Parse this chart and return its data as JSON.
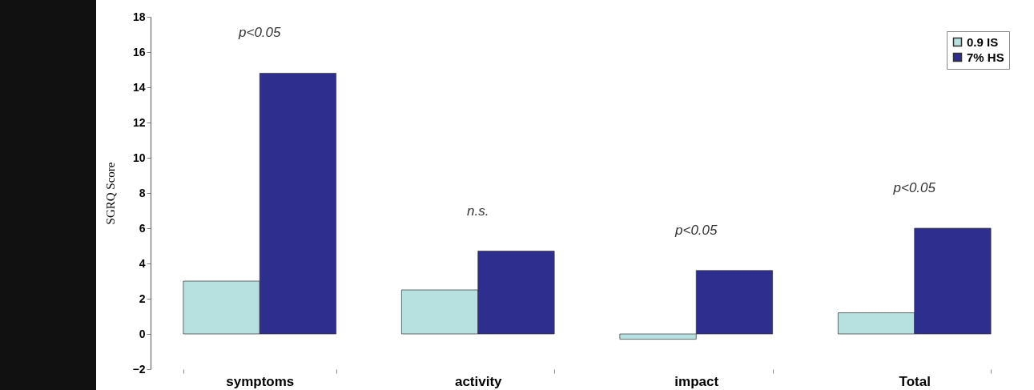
{
  "chart_data": {
    "type": "bar",
    "ylabel": "SGRQ Score",
    "categories": [
      "symptoms",
      "activity",
      "impact",
      "Total"
    ],
    "series": [
      {
        "name": "0.9 IS",
        "color": "#b7e0e0",
        "values": [
          3.0,
          2.5,
          -0.3,
          1.2
        ]
      },
      {
        "name": "7% HS",
        "color": "#2e2e8f",
        "values": [
          14.8,
          4.7,
          3.6,
          6.0
        ]
      }
    ],
    "ylim": [
      -2,
      18
    ],
    "yticks": [
      -2,
      0,
      2,
      4,
      6,
      8,
      10,
      12,
      14,
      16,
      18
    ],
    "grid": false,
    "legend": "top right",
    "annotations": [
      "p<0.05",
      "n.s.",
      "p<0.05",
      "p<0.05"
    ]
  }
}
